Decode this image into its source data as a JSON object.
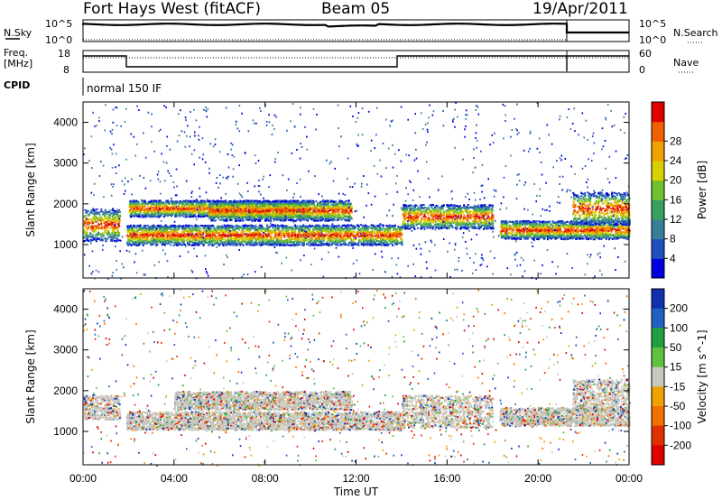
{
  "header": {
    "station": "Fort Hays West (fitACF)",
    "beam": "Beam 05",
    "date": "19/Apr/2011"
  },
  "top_panels": {
    "nsky_label": "N.Sky",
    "nsky_ticks": [
      "10^5",
      "10^0"
    ],
    "nsearch_label": "N.Search",
    "nsearch_ticks": [
      "10^5",
      "10^0"
    ],
    "freq_label": "Freq.",
    "freq_unit": "[MHz]",
    "freq_ticks": [
      "18",
      "8"
    ],
    "nave_label": "Nave",
    "nave_ticks": [
      "60",
      "0"
    ],
    "cpid_label": "CPID",
    "cpid_value": "normal 150 IF"
  },
  "chart_data": [
    {
      "type": "heatmap",
      "quantity": "Power",
      "ylabel": "Slant Range [km]",
      "yticks": [
        1000,
        2000,
        3000,
        4000
      ],
      "ylim": [
        180,
        4500
      ],
      "xlabel": "Time UT",
      "xticks": [
        "00:00",
        "04:00",
        "08:00",
        "12:00",
        "16:00",
        "20:00",
        "00:00"
      ],
      "xlim_hours": [
        0,
        24
      ],
      "colorbar": {
        "label": "Power [dB]",
        "ticks": [
          "4",
          "8",
          "12",
          "16",
          "20",
          "24",
          "28"
        ],
        "colors": [
          "#0000dd",
          "#2050c0",
          "#3a7f9a",
          "#38a060",
          "#70c030",
          "#d8d000",
          "#f0a000",
          "#f06000",
          "#dd0000"
        ]
      },
      "bands": [
        {
          "t0": 0.0,
          "t1": 1.6,
          "r0": 1100,
          "r1": 1900
        },
        {
          "t0": 1.9,
          "t1": 14.0,
          "r0": 1000,
          "r1": 1500
        },
        {
          "t0": 2.0,
          "t1": 10.0,
          "r0": 1700,
          "r1": 2100
        },
        {
          "t0": 5.5,
          "t1": 11.8,
          "r0": 1600,
          "r1": 2100
        },
        {
          "t0": 14.0,
          "t1": 18.0,
          "r0": 1400,
          "r1": 2000
        },
        {
          "t0": 18.3,
          "t1": 24.0,
          "r0": 1150,
          "r1": 1600
        },
        {
          "t0": 21.5,
          "t1": 24.0,
          "r0": 1500,
          "r1": 2300
        }
      ]
    },
    {
      "type": "heatmap",
      "quantity": "Velocity",
      "ylabel": "Slant Range [km]",
      "yticks": [
        1000,
        2000,
        3000,
        4000
      ],
      "ylim": [
        180,
        4500
      ],
      "xlabel": "Time UT",
      "xticks": [
        "00:00",
        "04:00",
        "08:00",
        "12:00",
        "16:00",
        "20:00",
        "00:00"
      ],
      "xlim_hours": [
        0,
        24
      ],
      "colorbar": {
        "label": "Velocity [m s^-1]",
        "ticks": [
          "200",
          "100",
          "50",
          "15",
          "-15",
          "-50",
          "-100",
          "-200"
        ],
        "colors": [
          "#1030b0",
          "#2060c0",
          "#20a040",
          "#60c040",
          "#c8c8c0",
          "#f0a000",
          "#f07000",
          "#e03000",
          "#dd0000"
        ]
      },
      "bands": [
        {
          "t0": 0.0,
          "t1": 1.6,
          "r0": 1300,
          "r1": 1900
        },
        {
          "t0": 1.9,
          "t1": 14.0,
          "r0": 1050,
          "r1": 1500
        },
        {
          "t0": 4.0,
          "t1": 11.8,
          "r0": 1550,
          "r1": 2000
        },
        {
          "t0": 14.0,
          "t1": 18.0,
          "r0": 1100,
          "r1": 1900
        },
        {
          "t0": 18.3,
          "t1": 24.0,
          "r0": 1150,
          "r1": 1600
        },
        {
          "t0": 21.5,
          "t1": 24.0,
          "r0": 1500,
          "r1": 2300
        }
      ]
    }
  ]
}
